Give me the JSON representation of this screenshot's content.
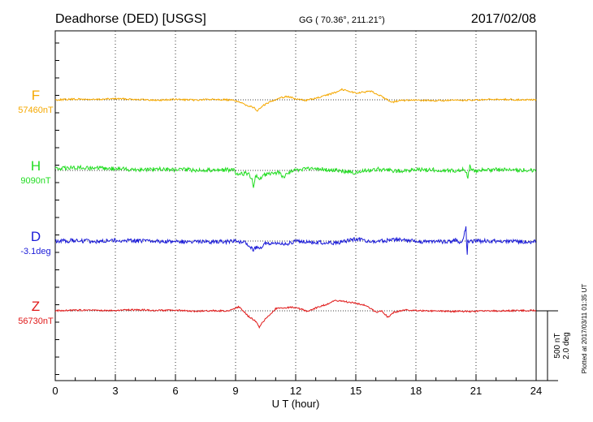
{
  "header": {
    "station": "Deadhorse (DED)  [USGS]",
    "coords": "GG ( 70.36°, 211.21°)",
    "date": "2017/02/08"
  },
  "plot_note": "Plotted at 2017/03/11 01:35 UT",
  "scale_bar": {
    "label_nt": "500 nT",
    "label_deg": "2.0 deg"
  },
  "chart_data": {
    "type": "line",
    "title": "",
    "xlabel": "U T (hour)",
    "ylabel": "",
    "xlim": [
      0,
      24
    ],
    "xticks": [
      "0",
      "3",
      "6",
      "9",
      "12",
      "15",
      "18",
      "21",
      "24"
    ],
    "grid": "vertical dotted every 3 hours",
    "series": [
      {
        "name": "F",
        "baseline_label": "57460nT",
        "color": "#f5a800",
        "x": [
          0,
          1,
          2,
          3,
          4,
          5,
          6,
          7,
          8,
          9,
          9.3,
          9.6,
          9.9,
          10.1,
          10.2,
          10.5,
          10.8,
          11.2,
          11.6,
          12.0,
          12.5,
          13,
          13.5,
          14,
          14.3,
          14.6,
          15,
          15.4,
          15.8,
          16.2,
          16.5,
          16.8,
          17.2,
          18,
          19,
          20,
          21,
          22,
          23,
          24
        ],
        "y": [
          0,
          5,
          2,
          8,
          4,
          -3,
          3,
          -2,
          5,
          -5,
          -25,
          -40,
          -55,
          -80,
          -62,
          -30,
          -10,
          15,
          25,
          5,
          -3,
          10,
          30,
          55,
          75,
          65,
          48,
          55,
          60,
          30,
          8,
          -18,
          -5,
          -3,
          -6,
          -4,
          -2,
          3,
          1,
          0
        ]
      },
      {
        "name": "H",
        "baseline_label": "9090nT",
        "color": "#22dd22",
        "x": [
          0,
          1,
          2,
          3,
          4,
          5,
          6,
          7,
          8,
          8.9,
          9.1,
          9.3,
          9.6,
          9.8,
          9.9,
          10.0,
          10.2,
          10.4,
          10.8,
          11.2,
          11.4,
          11.6,
          12,
          13,
          14,
          15,
          16,
          17,
          18,
          19,
          20,
          20.4,
          20.6,
          20.7,
          20.8,
          21,
          22,
          23,
          24
        ],
        "y": [
          10,
          22,
          15,
          14,
          6,
          10,
          5,
          3,
          4,
          5,
          -35,
          -25,
          -20,
          -50,
          -130,
          -40,
          -60,
          -30,
          -25,
          -15,
          -50,
          -20,
          5,
          12,
          0,
          -15,
          10,
          -4,
          3,
          5,
          -5,
          10,
          -45,
          35,
          -5,
          0,
          5,
          4,
          0
        ]
      },
      {
        "name": "D",
        "baseline_label": "-3.1deg",
        "color": "#1a1ad8",
        "x": [
          0,
          1,
          2,
          3,
          4,
          5,
          6,
          7,
          8,
          9,
          9.4,
          9.7,
          9.85,
          10.0,
          10.2,
          10.5,
          11,
          11.5,
          12,
          13,
          14,
          15,
          15.5,
          16,
          17,
          18,
          19,
          19.5,
          20,
          20.3,
          20.5,
          20.55,
          20.6,
          20.7,
          20.9,
          21.2,
          22,
          23,
          24
        ],
        "y": [
          0,
          3,
          -2,
          4,
          2,
          -3,
          -4,
          -2,
          -5,
          -4,
          -10,
          -30,
          -65,
          -45,
          -55,
          -15,
          -10,
          -25,
          -3,
          -10,
          -15,
          15,
          -2,
          -3,
          10,
          -2,
          -5,
          -3,
          5,
          -15,
          95,
          -120,
          10,
          -5,
          3,
          0,
          2,
          -3,
          -4
        ]
      },
      {
        "name": "Z",
        "baseline_label": "56730nT",
        "color": "#e01818",
        "x": [
          0,
          1,
          2,
          3,
          4,
          5,
          6,
          7,
          8,
          8.7,
          9.0,
          9.2,
          9.6,
          10.0,
          10.2,
          10.3,
          10.6,
          11,
          11.4,
          11.8,
          12.2,
          12.6,
          13,
          13.5,
          14,
          14.5,
          15,
          15.5,
          16,
          16.3,
          16.6,
          16.9,
          17.5,
          18,
          19,
          20,
          21,
          22,
          23,
          24
        ],
        "y": [
          0,
          5,
          3,
          2,
          8,
          3,
          4,
          -3,
          1,
          -2,
          20,
          30,
          -35,
          -75,
          -120,
          -90,
          -40,
          15,
          20,
          25,
          15,
          -5,
          20,
          45,
          75,
          65,
          55,
          40,
          -10,
          0,
          -45,
          -10,
          5,
          3,
          -2,
          -4,
          -3,
          -1,
          1,
          2
        ]
      }
    ]
  }
}
